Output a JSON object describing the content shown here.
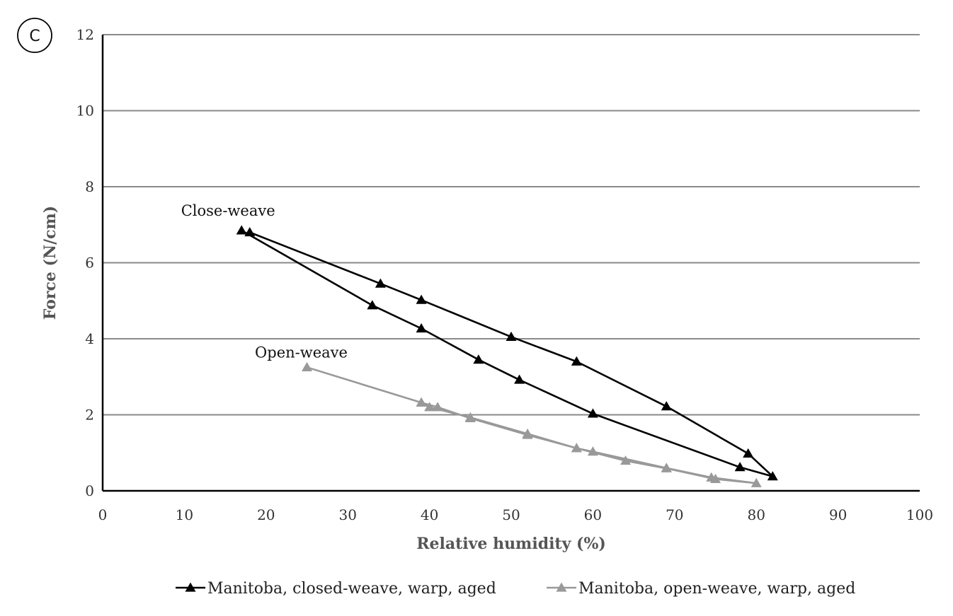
{
  "panel_label": "C",
  "chart_data": {
    "type": "line",
    "title": "",
    "xlabel": "Relative humidity (%)",
    "ylabel": "Force (N/cm)",
    "xlim": [
      0,
      100
    ],
    "ylim": [
      0,
      12
    ],
    "xticks": [
      0,
      10,
      20,
      30,
      40,
      50,
      60,
      70,
      80,
      90,
      100
    ],
    "yticks": [
      0,
      2,
      4,
      6,
      8,
      10,
      12
    ],
    "grid": "horizontal",
    "legend_position": "bottom",
    "annotations": [
      {
        "text": "Close-weave",
        "x": 17,
        "y": 6.85
      },
      {
        "text": "Open-weave",
        "x": 25,
        "y": 3.25
      }
    ],
    "series": [
      {
        "name": "Manitoba, closed-weave, warp, aged",
        "color": "#000000",
        "marker": "triangle",
        "x": [
          17,
          33,
          39,
          46,
          51,
          60,
          78,
          82,
          79,
          69,
          58,
          50,
          39,
          34,
          18
        ],
        "y": [
          6.85,
          4.88,
          4.27,
          3.45,
          2.92,
          2.03,
          0.62,
          0.38,
          0.98,
          2.22,
          3.4,
          4.05,
          5.02,
          5.45,
          6.8
        ]
      },
      {
        "name": "Manitoba, open-weave, warp, aged",
        "color": "#999999",
        "marker": "triangle",
        "x": [
          25,
          39,
          41,
          45,
          52,
          58,
          64,
          69,
          75,
          80,
          74.5,
          69,
          60,
          58,
          52,
          45,
          40,
          39
        ],
        "y": [
          3.25,
          2.32,
          2.2,
          1.91,
          1.47,
          1.12,
          0.79,
          0.59,
          0.31,
          0.2,
          0.35,
          0.6,
          1.03,
          1.12,
          1.5,
          1.93,
          2.2,
          2.32
        ]
      }
    ]
  }
}
